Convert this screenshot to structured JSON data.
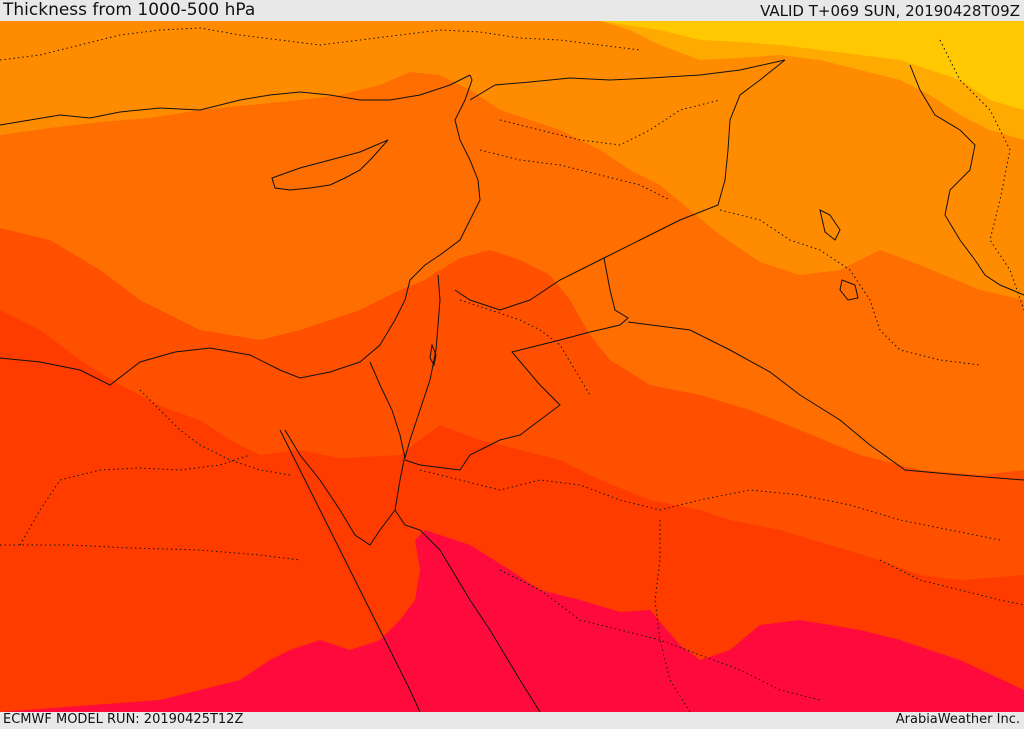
{
  "header": {
    "title": "Thickness from 1000-500 hPa",
    "valid": "VALID T+069 SUN, 20190428T09Z"
  },
  "footer": {
    "model_run": "ECMWF MODEL RUN: 20190425T12Z",
    "credit": "ArabiaWeather Inc."
  },
  "colors": {
    "band_1": "#ffc800",
    "band_2": "#ffaa00",
    "band_3": "#ff8c00",
    "band_4": "#ff6e00",
    "band_5": "#ff5000",
    "band_6": "#ff3c00",
    "band_7": "#ff0a3c"
  }
}
